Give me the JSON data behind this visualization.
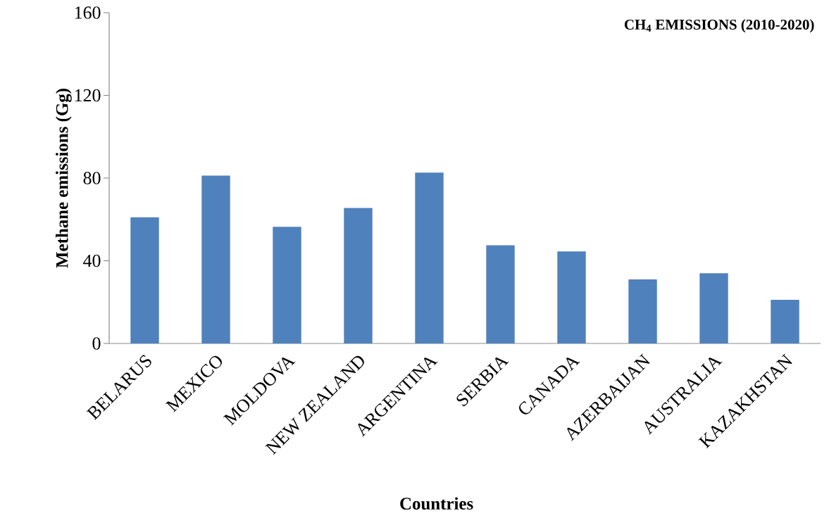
{
  "chart_data": {
    "type": "bar",
    "title": "CH$_{4}$ EMISSIONS (2010-2020)",
    "xlabel": "Countries",
    "ylabel": "Methane emissions (Gg)",
    "categories": [
      "BELARUS",
      "MEXICO",
      "MOLDOVA",
      "NEW ZEALAND",
      "ARGENTINA",
      "SERBIA",
      "CANADA",
      "AZERBAIJAN",
      "AUSTRALIA",
      "KAZAKHSTAN"
    ],
    "values": [
      61,
      81.2,
      56.4,
      65.5,
      82.6,
      47.5,
      44.5,
      31,
      34,
      21.1
    ],
    "color": "#4f81bd",
    "ylim": [
      0,
      160
    ],
    "yticks": [
      0,
      40,
      80,
      120,
      160
    ]
  }
}
